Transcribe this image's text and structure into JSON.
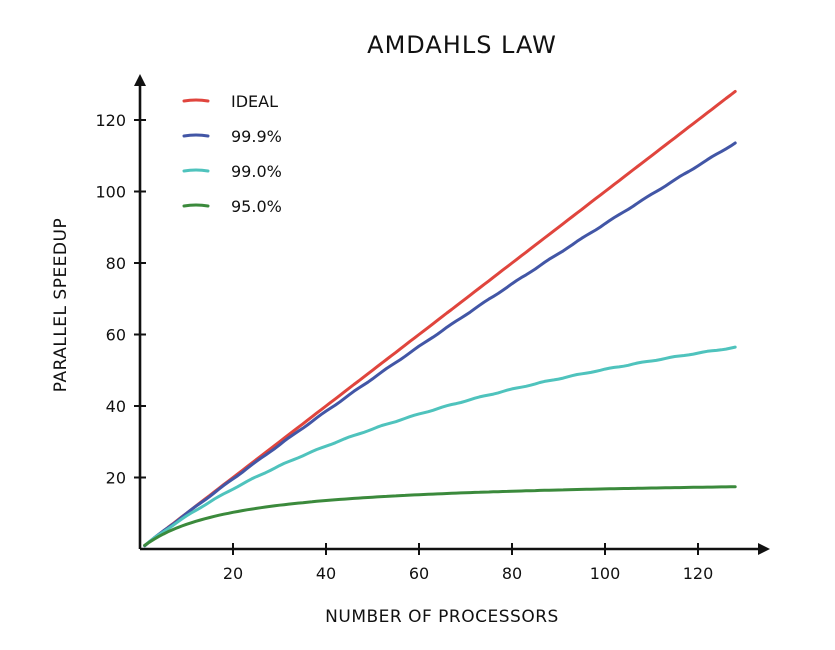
{
  "chart_data": {
    "type": "line",
    "title": "AMDAHLS LAW",
    "xlabel": "NUMBER OF PROCESSORS",
    "ylabel": "PARALLEL SPEEDUP",
    "xlim": [
      0,
      135
    ],
    "ylim": [
      0,
      128
    ],
    "xticks": [
      20,
      40,
      60,
      80,
      100,
      120
    ],
    "yticks": [
      20,
      40,
      60,
      80,
      100,
      120
    ],
    "xtick_labels": [
      "20",
      "40",
      "60",
      "80",
      "100",
      "120"
    ],
    "ytick_labels": [
      "20",
      "40",
      "60",
      "80",
      "100",
      "120"
    ],
    "grid": false,
    "legend_position": "top-left",
    "series": [
      {
        "name": "IDEAL",
        "color": "#e0453d",
        "parallel_fraction": 1.0
      },
      {
        "name": "99.9%",
        "color": "#4256a6",
        "parallel_fraction": 0.999
      },
      {
        "name": "99.0%",
        "color": "#4fc3bd",
        "parallel_fraction": 0.99
      },
      {
        "name": "95.0%",
        "color": "#3b8a3c",
        "parallel_fraction": 0.95
      }
    ],
    "x": [
      1,
      128
    ]
  }
}
